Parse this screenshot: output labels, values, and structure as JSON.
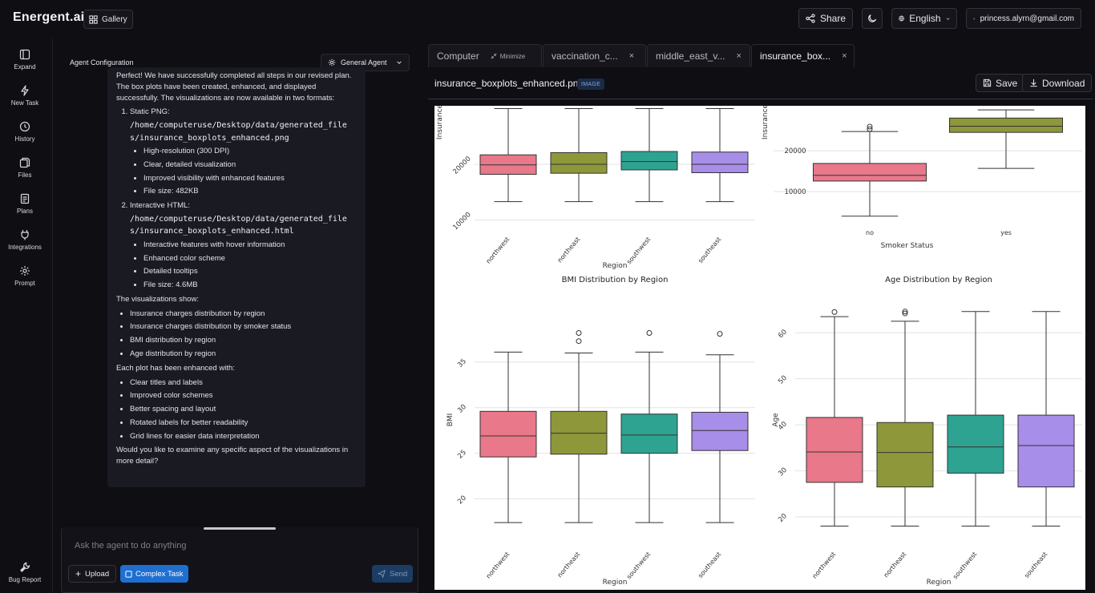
{
  "app": {
    "brand": "Energent.ai",
    "gallery_label": "Gallery"
  },
  "topbar": {
    "share_label": "Share",
    "language": "English",
    "user_email": "princess.alyrn@gmail.com"
  },
  "nav": [
    {
      "label": "Expand",
      "icon": "expand-icon"
    },
    {
      "label": "New Task",
      "icon": "new-task-icon"
    },
    {
      "label": "History",
      "icon": "history-icon"
    },
    {
      "label": "Files",
      "icon": "files-icon"
    },
    {
      "label": "Plans",
      "icon": "plans-icon"
    },
    {
      "label": "Integrations",
      "icon": "integrations-icon"
    },
    {
      "label": "Prompt",
      "icon": "prompt-icon"
    },
    {
      "label": "Bug Report",
      "icon": "bug-icon"
    }
  ],
  "agent": {
    "config_label": "Agent Configuration",
    "selected_agent": "General Agent"
  },
  "message": {
    "intro": "Perfect! We have successfully completed all steps in our revised plan. The box plots have been created, enhanced, and displayed successfully. The visualizations are now available in two formats:",
    "formats": [
      {
        "title": "Static PNG:",
        "path": "/home/computeruse/Desktop/data/generated_files/insurance_boxplots_enhanced.png",
        "bullets": [
          "High-resolution (300 DPI)",
          "Clear, detailed visualization",
          "Improved visibility with enhanced features",
          "File size: 482KB"
        ]
      },
      {
        "title": "Interactive HTML:",
        "path": "/home/computeruse/Desktop/data/generated_files/insurance_boxplots_enhanced.html",
        "bullets": [
          "Interactive features with hover information",
          "Enhanced color scheme",
          "Detailed tooltips",
          "File size: 4.6MB"
        ]
      }
    ],
    "show_heading": "The visualizations show:",
    "show_items": [
      "Insurance charges distribution by region",
      "Insurance charges distribution by smoker status",
      "BMI distribution by region",
      "Age distribution by region"
    ],
    "enhanced_heading": "Each plot has been enhanced with:",
    "enhanced_items": [
      "Clear titles and labels",
      "Improved color schemes",
      "Better spacing and layout",
      "Rotated labels for better readability",
      "Grid lines for easier data interpretation"
    ],
    "closing": "Would you like to examine any specific aspect of the visualizations in more detail?"
  },
  "composer": {
    "placeholder": "Ask the agent to do anything",
    "upload_label": "Upload",
    "complex_label": "Complex Task",
    "send_label": "Send"
  },
  "tabs": [
    {
      "label": "Computer",
      "extra": "Minimize"
    },
    {
      "label": "vaccination_c...",
      "close": "×"
    },
    {
      "label": "middle_east_v...",
      "close": "×"
    },
    {
      "label": "insurance_box...",
      "close": "×",
      "active": true
    }
  ],
  "file": {
    "name": "insurance_boxplots_enhanced.png",
    "badge": "IMAGE",
    "save_label": "Save",
    "download_label": "Download"
  },
  "colors": {
    "northwest": "#e8788a",
    "northeast": "#8e973a",
    "southwest": "#2fa392",
    "southeast": "#a78ee8",
    "accent": "#1e6fd0"
  },
  "chart_data": [
    {
      "type": "boxplot",
      "title": "",
      "xlabel": "Region",
      "ylabel": "Insurance",
      "categories": [
        "northwest",
        "northeast",
        "southwest",
        "southeast"
      ],
      "yticks": [
        10000,
        20000
      ],
      "boxes": [
        {
          "category": "northwest",
          "whislo": 13300,
          "q1": 18200,
          "med": 19900,
          "q3": 21700,
          "whishi": 30000
        },
        {
          "category": "northeast",
          "whislo": 13300,
          "q1": 18400,
          "med": 20000,
          "q3": 22100,
          "whishi": 30000
        },
        {
          "category": "southwest",
          "whislo": 13300,
          "q1": 19000,
          "med": 20500,
          "q3": 22300,
          "whishi": 30000
        },
        {
          "category": "southeast",
          "whislo": 13300,
          "q1": 18500,
          "med": 20000,
          "q3": 22200,
          "whishi": 30000
        }
      ],
      "note": "chart cut off at top"
    },
    {
      "type": "boxplot",
      "title": "",
      "xlabel": "Smoker Status",
      "ylabel": "Insurance",
      "categories": [
        "no",
        "yes"
      ],
      "yticks": [
        10000,
        20000
      ],
      "boxes": [
        {
          "category": "no",
          "whislo": 4000,
          "q1": 12600,
          "med": 14000,
          "q3": 16900,
          "whishi": 24700,
          "fliers": [
            25300,
            25900
          ]
        },
        {
          "category": "yes",
          "whislo": 15700,
          "q1": 24500,
          "med": 26000,
          "q3": 28000,
          "whishi": 30000
        }
      ]
    },
    {
      "type": "boxplot",
      "title": "BMI Distribution by Region",
      "xlabel": "Region",
      "ylabel": "BMI",
      "categories": [
        "northwest",
        "northeast",
        "southwest",
        "southeast"
      ],
      "yticks": [
        20,
        25,
        30,
        35
      ],
      "boxes": [
        {
          "category": "northwest",
          "whislo": 17.4,
          "q1": 24.6,
          "med": 26.9,
          "q3": 29.6,
          "whishi": 36.1,
          "fliers": []
        },
        {
          "category": "northeast",
          "whislo": 17.4,
          "q1": 24.9,
          "med": 27.2,
          "q3": 29.6,
          "whishi": 36.0,
          "fliers": [
            37.3,
            38.2
          ]
        },
        {
          "category": "southwest",
          "whislo": 17.4,
          "q1": 25.0,
          "med": 27.0,
          "q3": 29.3,
          "whishi": 36.1,
          "fliers": [
            38.2
          ]
        },
        {
          "category": "southeast",
          "whislo": 17.4,
          "q1": 25.3,
          "med": 27.5,
          "q3": 29.5,
          "whishi": 35.8,
          "fliers": [
            38.1
          ]
        }
      ]
    },
    {
      "type": "boxplot",
      "title": "Age Distribution by Region",
      "xlabel": "Region",
      "ylabel": "Age",
      "categories": [
        "northwest",
        "northeast",
        "southwest",
        "southeast"
      ],
      "yticks": [
        20,
        30,
        40,
        50,
        60
      ],
      "boxes": [
        {
          "category": "northwest",
          "whislo": 18,
          "q1": 27.5,
          "med": 34.1,
          "q3": 41.6,
          "whishi": 63.5,
          "fliers": [
            64.5
          ]
        },
        {
          "category": "northeast",
          "whislo": 18,
          "q1": 26.5,
          "med": 34.0,
          "q3": 40.5,
          "whishi": 62.5,
          "fliers": [
            64.2,
            64.6
          ]
        },
        {
          "category": "southwest",
          "whislo": 18,
          "q1": 29.5,
          "med": 35.2,
          "q3": 42.1,
          "whishi": 64.6
        },
        {
          "category": "southeast",
          "whislo": 18,
          "q1": 26.5,
          "med": 35.5,
          "q3": 42.1,
          "whishi": 64.6
        }
      ]
    }
  ]
}
